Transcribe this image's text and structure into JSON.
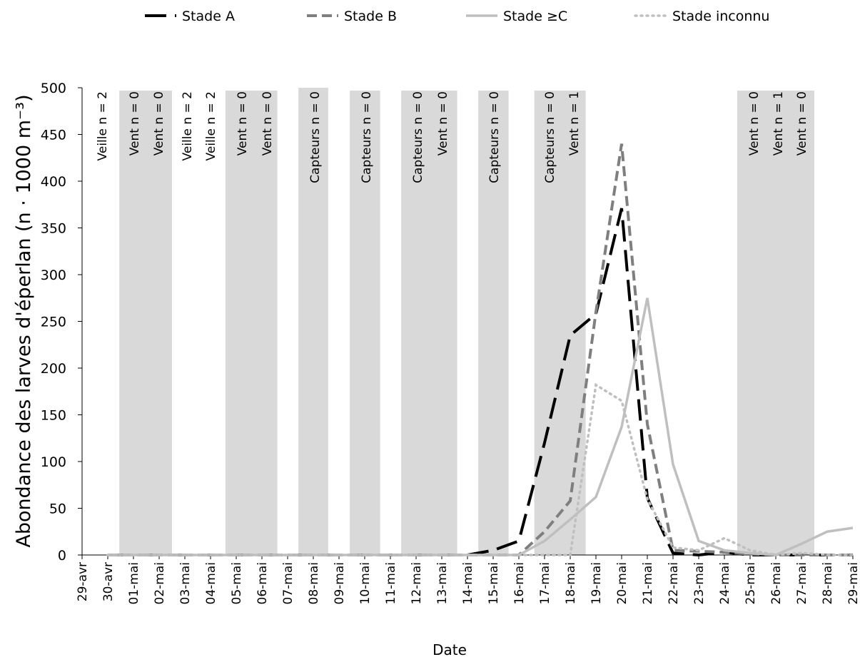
{
  "chart_data": {
    "type": "line",
    "xlabel": "Date",
    "ylabel": "Abondance des larves d'éperlan (n · 1000 m⁻³)",
    "categories": [
      "29-avr",
      "30-avr",
      "01-mai",
      "02-mai",
      "03-mai",
      "04-mai",
      "05-mai",
      "06-mai",
      "07-mai",
      "08-mai",
      "09-mai",
      "10-mai",
      "11-mai",
      "12-mai",
      "13-mai",
      "14-mai",
      "15-mai",
      "16-mai",
      "17-mai",
      "18-mai",
      "19-mai",
      "20-mai",
      "21-mai",
      "22-mai",
      "23-mai",
      "24-mai",
      "25-mai",
      "26-mai",
      "27-mai",
      "28-mai",
      "29-mai"
    ],
    "series": [
      {
        "name": "Stade A",
        "color": "#000000",
        "style": "long-dash",
        "values": [
          null,
          0,
          0,
          0,
          0,
          0,
          0,
          0,
          0,
          0,
          0,
          0,
          0,
          0,
          0,
          0,
          5,
          15,
          120,
          235,
          258,
          371,
          61,
          2,
          0,
          3,
          0,
          0,
          0,
          0,
          0
        ]
      },
      {
        "name": "Stade B",
        "color": "#7f7f7f",
        "style": "dash",
        "values": [
          null,
          0,
          0,
          0,
          0,
          0,
          0,
          0,
          0,
          0,
          0,
          0,
          0,
          0,
          0,
          0,
          0,
          0,
          25,
          58,
          260,
          440,
          140,
          5,
          4,
          3,
          1,
          0,
          0,
          0,
          0
        ]
      },
      {
        "name": "Stade ≥C",
        "color": "#bfbfbf",
        "style": "solid",
        "values": [
          null,
          0,
          0,
          0,
          0,
          0,
          0,
          0,
          0,
          0,
          0,
          0,
          0,
          0,
          0,
          0,
          0,
          0,
          15,
          38,
          62,
          137,
          275,
          97,
          15,
          5,
          2,
          0,
          12,
          25,
          29
        ]
      },
      {
        "name": "Stade inconnu",
        "color": "#bfbfbf",
        "style": "dot",
        "values": [
          null,
          0,
          0,
          0,
          0,
          0,
          0,
          0,
          0,
          0,
          0,
          0,
          0,
          0,
          0,
          0,
          0,
          0,
          0,
          0,
          182,
          165,
          60,
          8,
          5,
          18,
          5,
          0,
          2,
          0,
          0
        ]
      }
    ],
    "annotations": [
      "Veille n = 2",
      "Vent n = 0",
      "Vent n = 0",
      "Veille n = 2",
      "Veille n = 2",
      "Vent n = 0",
      "Vent n = 0",
      "Capteurs n = 0",
      "Capteurs n = 0",
      "Capteurs n = 0",
      "Vent n = 0",
      "Capteurs n = 0",
      "Capteurs n = 0",
      "Vent n = 1",
      "Vent n = 0",
      "Vent n = 1",
      "Vent n = 0"
    ],
    "ylim": [
      0,
      500
    ],
    "yticks": [
      0,
      50,
      100,
      150,
      200,
      250,
      300,
      350,
      400,
      450,
      500
    ],
    "grid": false,
    "legend": "top"
  }
}
